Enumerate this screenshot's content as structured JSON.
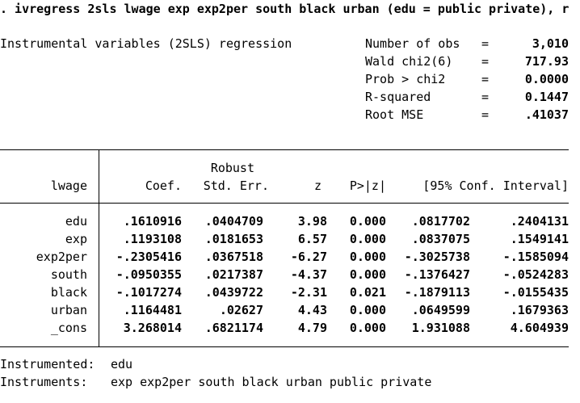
{
  "command": ". ivregress 2sls lwage exp exp2per south black urban (edu = public private), r",
  "model_title": "Instrumental variables (2SLS) regression",
  "stats": [
    {
      "label": "Number of obs",
      "eq": "=",
      "value": "3,010"
    },
    {
      "label": "Wald chi2(6)",
      "eq": "=",
      "value": "717.93"
    },
    {
      "label": "Prob > chi2",
      "eq": "=",
      "value": "0.0000"
    },
    {
      "label": "R-squared",
      "eq": "=",
      "value": "0.1447"
    },
    {
      "label": "Root MSE",
      "eq": "=",
      "value": ".41037"
    }
  ],
  "table": {
    "depvar": "lwage",
    "header_top": "Robust",
    "headers": [
      "Coef.",
      "Std. Err.",
      "z",
      "P>|z|",
      "[95% Conf. Interval]"
    ],
    "rows": [
      {
        "name": "edu",
        "coef": ".1610916",
        "se": ".0404709",
        "z": "3.98",
        "p": "0.000",
        "lo": ".0817702",
        "hi": ".2404131"
      },
      {
        "name": "exp",
        "coef": ".1193108",
        "se": ".0181653",
        "z": "6.57",
        "p": "0.000",
        "lo": ".0837075",
        "hi": ".1549141"
      },
      {
        "name": "exp2per",
        "coef": "-.2305416",
        "se": ".0367518",
        "z": "-6.27",
        "p": "0.000",
        "lo": "-.3025738",
        "hi": "-.1585094"
      },
      {
        "name": "south",
        "coef": "-.0950355",
        "se": ".0217387",
        "z": "-4.37",
        "p": "0.000",
        "lo": "-.1376427",
        "hi": "-.0524283"
      },
      {
        "name": "black",
        "coef": "-.1017274",
        "se": ".0439722",
        "z": "-2.31",
        "p": "0.021",
        "lo": "-.1879113",
        "hi": "-.0155435"
      },
      {
        "name": "urban",
        "coef": ".1164481",
        "se": ".02627",
        "z": "4.43",
        "p": "0.000",
        "lo": ".0649599",
        "hi": ".1679363"
      },
      {
        "name": "_cons",
        "coef": "3.268014",
        "se": ".6821174",
        "z": "4.79",
        "p": "0.000",
        "lo": "1.931088",
        "hi": "4.604939"
      }
    ]
  },
  "footer": {
    "instrumented_label": "Instrumented:",
    "instrumented_value": "edu",
    "instruments_label": "Instruments:",
    "instruments_value": "exp exp2per south black urban public private"
  }
}
